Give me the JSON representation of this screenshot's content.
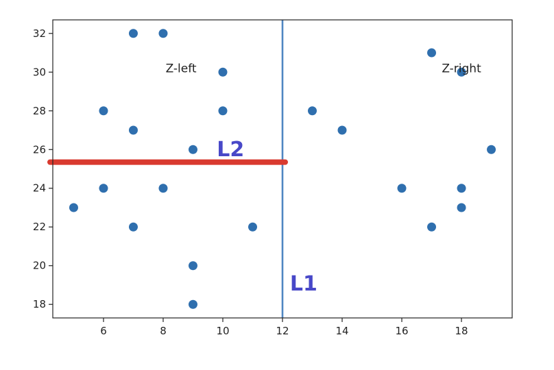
{
  "chart_data": {
    "type": "scatter",
    "xlim": [
      4.3,
      19.7
    ],
    "ylim": [
      17.3,
      32.7
    ],
    "x_ticks": [
      6,
      8,
      10,
      12,
      14,
      16,
      18
    ],
    "y_ticks": [
      18,
      20,
      22,
      24,
      26,
      28,
      30,
      32
    ],
    "grid": false,
    "points": [
      {
        "x": 7,
        "y": 32
      },
      {
        "x": 8,
        "y": 32
      },
      {
        "x": 10,
        "y": 30
      },
      {
        "x": 6,
        "y": 28
      },
      {
        "x": 10,
        "y": 28
      },
      {
        "x": 7,
        "y": 27
      },
      {
        "x": 9,
        "y": 26
      },
      {
        "x": 6,
        "y": 24
      },
      {
        "x": 8,
        "y": 24
      },
      {
        "x": 5,
        "y": 23
      },
      {
        "x": 7,
        "y": 22
      },
      {
        "x": 11,
        "y": 22
      },
      {
        "x": 9,
        "y": 20
      },
      {
        "x": 9,
        "y": 18
      },
      {
        "x": 17,
        "y": 31
      },
      {
        "x": 18,
        "y": 30
      },
      {
        "x": 13,
        "y": 28
      },
      {
        "x": 14,
        "y": 27
      },
      {
        "x": 19,
        "y": 26
      },
      {
        "x": 16,
        "y": 24
      },
      {
        "x": 18,
        "y": 24
      },
      {
        "x": 18,
        "y": 23
      },
      {
        "x": 17,
        "y": 22
      }
    ],
    "point_color": "#2f6fae",
    "lines": {
      "vertical": {
        "label": "L1",
        "x": 12,
        "color": "#4f86c2"
      },
      "horizontal": {
        "label": "L2",
        "y": 25.35,
        "x_start": 4.3,
        "x_end": 12,
        "color": "#d93a2f"
      }
    },
    "line_label_color": "#4848c8",
    "annotations": [
      {
        "text": "Z-left",
        "x": 8.6,
        "y": 30.2
      },
      {
        "text": "Z-right",
        "x": 18.0,
        "y": 30.2
      }
    ],
    "line_labels_pos": {
      "L1": {
        "x": 12.25,
        "y": 19.1
      },
      "L2": {
        "x": 9.8,
        "y": 26.05
      }
    }
  }
}
